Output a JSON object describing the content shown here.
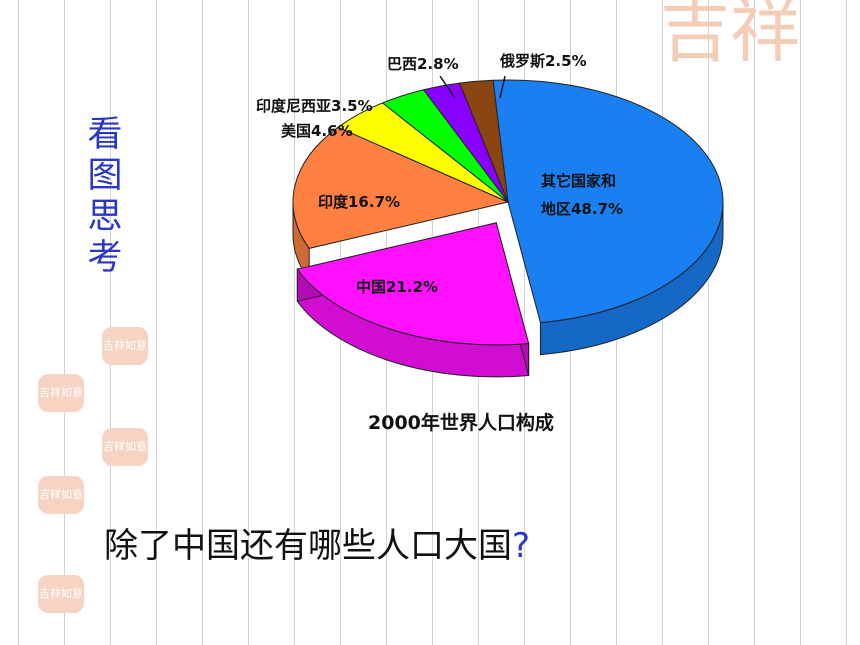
{
  "side_title": [
    "看",
    "图",
    "思",
    "考"
  ],
  "question": {
    "text": "除了中国还有哪些人口大国",
    "mark": "?"
  },
  "decoration": {
    "large_text": "吉祥",
    "seal_text": "吉祥如意"
  },
  "colors": {
    "other": "#1a7ff0",
    "china": "#ff10ff",
    "india": "#ff8040",
    "usa": "#ffff00",
    "indonesia": "#00ff00",
    "brazil": "#8800ff",
    "russia": "#8b4513",
    "title": "#2a35c9"
  },
  "chart_data": {
    "type": "pie",
    "title": "2000年世界人口构成",
    "slices": [
      {
        "key": "other",
        "label_lines": [
          "其它国家和",
          "地区48.7%"
        ],
        "value": 48.7
      },
      {
        "key": "china",
        "label_lines": [
          "中国21.2%"
        ],
        "value": 21.2
      },
      {
        "key": "india",
        "label_lines": [
          "印度16.7%"
        ],
        "value": 16.7
      },
      {
        "key": "usa",
        "label_lines": [
          "美国4.6%"
        ],
        "value": 4.6
      },
      {
        "key": "indonesia",
        "label_lines": [
          "印度尼西亚3.5%"
        ],
        "value": 3.5
      },
      {
        "key": "brazil",
        "label_lines": [
          "巴西2.8%"
        ],
        "value": 2.8
      },
      {
        "key": "russia",
        "label_lines": [
          "俄罗斯2.5%"
        ],
        "value": 2.5
      }
    ],
    "exploded": "china"
  }
}
